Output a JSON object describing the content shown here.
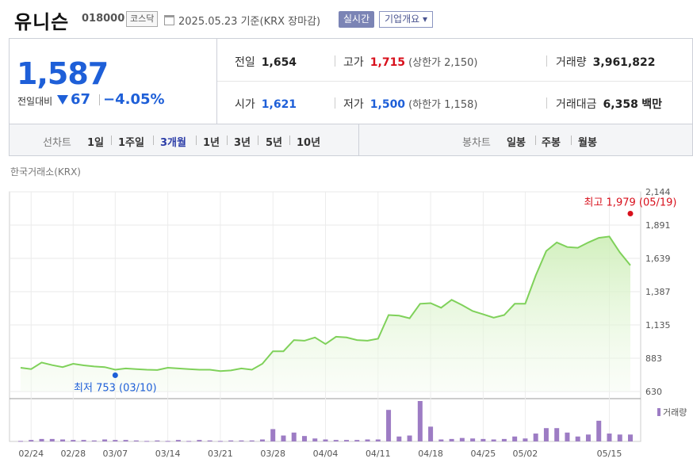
{
  "header": {
    "name": "유니슨",
    "code": "018000",
    "market": "코스닥",
    "date": "2025.05.23",
    "basis": "기준(KRX 장마감)",
    "realtime_label": "실시간",
    "company_info_label": "기업개요 ▾"
  },
  "summary": {
    "price": "1,587",
    "change_label": "전일대비",
    "change_value": "67",
    "change_pct": "−4.05%",
    "prev_close_label": "전일",
    "prev_close": "1,654",
    "high_label": "고가",
    "high": "1,715",
    "upper_limit": "(상한가 2,150)",
    "volume_label": "거래량",
    "volume": "3,961,822",
    "open_label": "시가",
    "open": "1,621",
    "low_label": "저가",
    "low": "1,500",
    "lower_limit": "(하한가 1,158)",
    "amount_label": "거래대금",
    "amount": "6,358",
    "amount_unit": "백만"
  },
  "periods": {
    "line_label": "선차트",
    "line_items": [
      "1일",
      "1주일",
      "3개월",
      "1년",
      "3년",
      "5년",
      "10년"
    ],
    "selected": "3개월",
    "candle_label": "봉차트",
    "candle_items": [
      "일봉",
      "주봉",
      "월봉"
    ]
  },
  "exchange_label": "한국거래소(KRX)",
  "colors": {
    "up": "#d8101c",
    "down": "#1e5fd8",
    "line": "#7fd15a",
    "volume": "#9d7cc4"
  },
  "chart_data": {
    "type": "area",
    "y_ticks": [
      "2,144",
      "1,891",
      "1,639",
      "1,387",
      "1,135",
      "883",
      "630"
    ],
    "ylim": [
      630,
      2144
    ],
    "x_tick_labels": [
      "02/24",
      "02/28",
      "03/07",
      "03/14",
      "03/21",
      "03/28",
      "04/04",
      "04/11",
      "04/18",
      "04/25",
      "05/02",
      "05/15"
    ],
    "x_tick_index": [
      1,
      5,
      9,
      14,
      19,
      24,
      29,
      34,
      39,
      44,
      48,
      56
    ],
    "high_annotation": "최고 1,979 (05/19)",
    "low_annotation": "최저 753 (03/10)",
    "high_point": {
      "index": 58,
      "value": 1979
    },
    "low_point": {
      "index": 9,
      "value": 753
    },
    "price_series": {
      "name": "종가",
      "values": [
        810,
        800,
        850,
        830,
        815,
        840,
        828,
        820,
        815,
        795,
        805,
        800,
        795,
        793,
        810,
        805,
        800,
        795,
        795,
        785,
        790,
        805,
        795,
        840,
        935,
        935,
        1020,
        1015,
        1040,
        990,
        1045,
        1040,
        1020,
        1015,
        1030,
        1210,
        1205,
        1185,
        1295,
        1300,
        1265,
        1325,
        1285,
        1240,
        1215,
        1190,
        1210,
        1295,
        1295,
        1510,
        1695,
        1760,
        1725,
        1720,
        1760,
        1795,
        1805,
        1685,
        1587
      ]
    },
    "volume_label": "거래량",
    "volume_series": {
      "name": "거래량",
      "values": [
        1,
        3,
        5,
        5,
        4,
        3,
        3,
        2,
        4,
        3,
        3,
        2,
        1,
        2,
        1,
        3,
        1,
        3,
        2,
        1,
        2,
        2,
        2,
        4,
        25,
        12,
        18,
        11,
        6,
        4,
        3,
        3,
        3,
        4,
        4,
        64,
        10,
        12,
        82,
        30,
        4,
        5,
        7,
        6,
        5,
        4,
        5,
        10,
        6,
        16,
        27,
        27,
        18,
        10,
        14,
        42,
        16,
        14,
        14
      ]
    },
    "volume_legend": "거래량"
  }
}
